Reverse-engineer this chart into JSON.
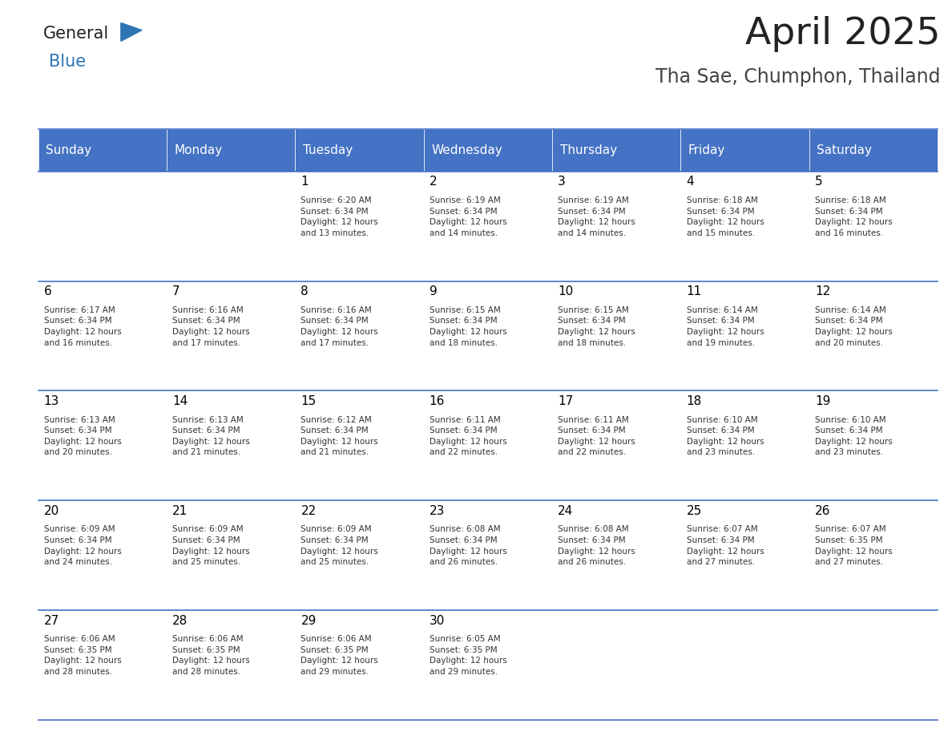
{
  "title": "April 2025",
  "subtitle": "Tha Sae, Chumphon, Thailand",
  "header_color": "#4472C4",
  "header_text_color": "#FFFFFF",
  "days_of_week": [
    "Sunday",
    "Monday",
    "Tuesday",
    "Wednesday",
    "Thursday",
    "Friday",
    "Saturday"
  ],
  "background_color": "#FFFFFF",
  "cell_text_color": "#333333",
  "day_num_color": "#000000",
  "line_color": "#4472C4",
  "logo_general_color": "#222222",
  "logo_blue_color": "#2E75B6",
  "title_color": "#222222",
  "subtitle_color": "#444444",
  "calendar": [
    [
      {
        "day": "",
        "sunrise": "",
        "sunset": "",
        "daylight": ""
      },
      {
        "day": "",
        "sunrise": "",
        "sunset": "",
        "daylight": ""
      },
      {
        "day": "1",
        "sunrise": "Sunrise: 6:20 AM",
        "sunset": "Sunset: 6:34 PM",
        "daylight": "Daylight: 12 hours\nand 13 minutes."
      },
      {
        "day": "2",
        "sunrise": "Sunrise: 6:19 AM",
        "sunset": "Sunset: 6:34 PM",
        "daylight": "Daylight: 12 hours\nand 14 minutes."
      },
      {
        "day": "3",
        "sunrise": "Sunrise: 6:19 AM",
        "sunset": "Sunset: 6:34 PM",
        "daylight": "Daylight: 12 hours\nand 14 minutes."
      },
      {
        "day": "4",
        "sunrise": "Sunrise: 6:18 AM",
        "sunset": "Sunset: 6:34 PM",
        "daylight": "Daylight: 12 hours\nand 15 minutes."
      },
      {
        "day": "5",
        "sunrise": "Sunrise: 6:18 AM",
        "sunset": "Sunset: 6:34 PM",
        "daylight": "Daylight: 12 hours\nand 16 minutes."
      }
    ],
    [
      {
        "day": "6",
        "sunrise": "Sunrise: 6:17 AM",
        "sunset": "Sunset: 6:34 PM",
        "daylight": "Daylight: 12 hours\nand 16 minutes."
      },
      {
        "day": "7",
        "sunrise": "Sunrise: 6:16 AM",
        "sunset": "Sunset: 6:34 PM",
        "daylight": "Daylight: 12 hours\nand 17 minutes."
      },
      {
        "day": "8",
        "sunrise": "Sunrise: 6:16 AM",
        "sunset": "Sunset: 6:34 PM",
        "daylight": "Daylight: 12 hours\nand 17 minutes."
      },
      {
        "day": "9",
        "sunrise": "Sunrise: 6:15 AM",
        "sunset": "Sunset: 6:34 PM",
        "daylight": "Daylight: 12 hours\nand 18 minutes."
      },
      {
        "day": "10",
        "sunrise": "Sunrise: 6:15 AM",
        "sunset": "Sunset: 6:34 PM",
        "daylight": "Daylight: 12 hours\nand 18 minutes."
      },
      {
        "day": "11",
        "sunrise": "Sunrise: 6:14 AM",
        "sunset": "Sunset: 6:34 PM",
        "daylight": "Daylight: 12 hours\nand 19 minutes."
      },
      {
        "day": "12",
        "sunrise": "Sunrise: 6:14 AM",
        "sunset": "Sunset: 6:34 PM",
        "daylight": "Daylight: 12 hours\nand 20 minutes."
      }
    ],
    [
      {
        "day": "13",
        "sunrise": "Sunrise: 6:13 AM",
        "sunset": "Sunset: 6:34 PM",
        "daylight": "Daylight: 12 hours\nand 20 minutes."
      },
      {
        "day": "14",
        "sunrise": "Sunrise: 6:13 AM",
        "sunset": "Sunset: 6:34 PM",
        "daylight": "Daylight: 12 hours\nand 21 minutes."
      },
      {
        "day": "15",
        "sunrise": "Sunrise: 6:12 AM",
        "sunset": "Sunset: 6:34 PM",
        "daylight": "Daylight: 12 hours\nand 21 minutes."
      },
      {
        "day": "16",
        "sunrise": "Sunrise: 6:11 AM",
        "sunset": "Sunset: 6:34 PM",
        "daylight": "Daylight: 12 hours\nand 22 minutes."
      },
      {
        "day": "17",
        "sunrise": "Sunrise: 6:11 AM",
        "sunset": "Sunset: 6:34 PM",
        "daylight": "Daylight: 12 hours\nand 22 minutes."
      },
      {
        "day": "18",
        "sunrise": "Sunrise: 6:10 AM",
        "sunset": "Sunset: 6:34 PM",
        "daylight": "Daylight: 12 hours\nand 23 minutes."
      },
      {
        "day": "19",
        "sunrise": "Sunrise: 6:10 AM",
        "sunset": "Sunset: 6:34 PM",
        "daylight": "Daylight: 12 hours\nand 23 minutes."
      }
    ],
    [
      {
        "day": "20",
        "sunrise": "Sunrise: 6:09 AM",
        "sunset": "Sunset: 6:34 PM",
        "daylight": "Daylight: 12 hours\nand 24 minutes."
      },
      {
        "day": "21",
        "sunrise": "Sunrise: 6:09 AM",
        "sunset": "Sunset: 6:34 PM",
        "daylight": "Daylight: 12 hours\nand 25 minutes."
      },
      {
        "day": "22",
        "sunrise": "Sunrise: 6:09 AM",
        "sunset": "Sunset: 6:34 PM",
        "daylight": "Daylight: 12 hours\nand 25 minutes."
      },
      {
        "day": "23",
        "sunrise": "Sunrise: 6:08 AM",
        "sunset": "Sunset: 6:34 PM",
        "daylight": "Daylight: 12 hours\nand 26 minutes."
      },
      {
        "day": "24",
        "sunrise": "Sunrise: 6:08 AM",
        "sunset": "Sunset: 6:34 PM",
        "daylight": "Daylight: 12 hours\nand 26 minutes."
      },
      {
        "day": "25",
        "sunrise": "Sunrise: 6:07 AM",
        "sunset": "Sunset: 6:34 PM",
        "daylight": "Daylight: 12 hours\nand 27 minutes."
      },
      {
        "day": "26",
        "sunrise": "Sunrise: 6:07 AM",
        "sunset": "Sunset: 6:35 PM",
        "daylight": "Daylight: 12 hours\nand 27 minutes."
      }
    ],
    [
      {
        "day": "27",
        "sunrise": "Sunrise: 6:06 AM",
        "sunset": "Sunset: 6:35 PM",
        "daylight": "Daylight: 12 hours\nand 28 minutes."
      },
      {
        "day": "28",
        "sunrise": "Sunrise: 6:06 AM",
        "sunset": "Sunset: 6:35 PM",
        "daylight": "Daylight: 12 hours\nand 28 minutes."
      },
      {
        "day": "29",
        "sunrise": "Sunrise: 6:06 AM",
        "sunset": "Sunset: 6:35 PM",
        "daylight": "Daylight: 12 hours\nand 29 minutes."
      },
      {
        "day": "30",
        "sunrise": "Sunrise: 6:05 AM",
        "sunset": "Sunset: 6:35 PM",
        "daylight": "Daylight: 12 hours\nand 29 minutes."
      },
      {
        "day": "",
        "sunrise": "",
        "sunset": "",
        "daylight": ""
      },
      {
        "day": "",
        "sunrise": "",
        "sunset": "",
        "daylight": ""
      },
      {
        "day": "",
        "sunrise": "",
        "sunset": "",
        "daylight": ""
      }
    ]
  ]
}
